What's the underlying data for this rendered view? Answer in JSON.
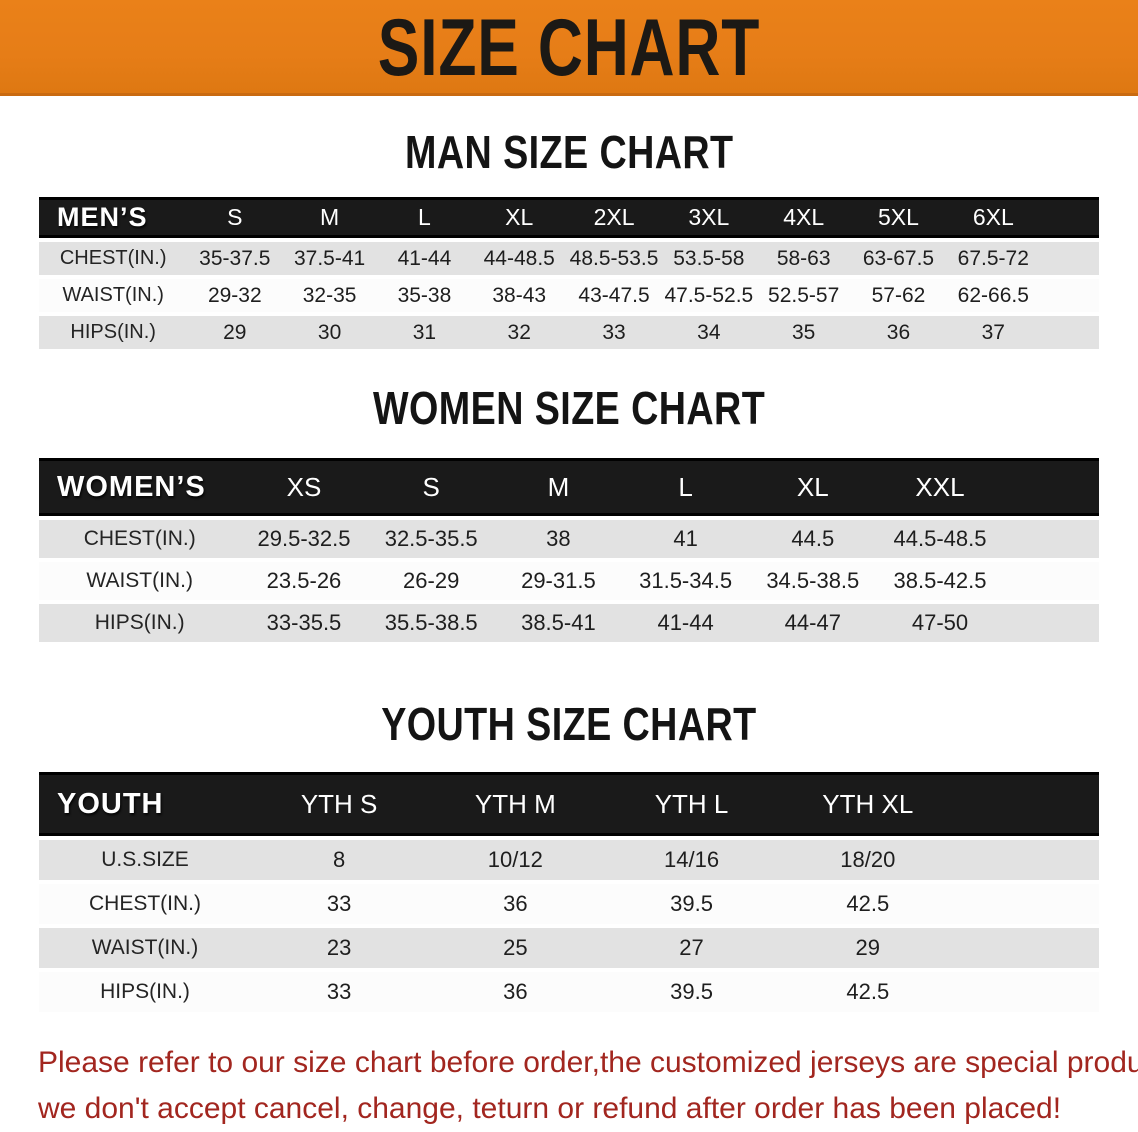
{
  "banner": {
    "title": "SIZE CHART"
  },
  "sections": [
    {
      "title": "MAN SIZE CHART",
      "header_label": "MEN’S",
      "columns": [
        "S",
        "M",
        "L",
        "XL",
        "2XL",
        "3XL",
        "4XL",
        "5XL",
        "6XL"
      ],
      "rows": [
        {
          "label": "CHEST(IN.)",
          "values": [
            "35-37.5",
            "37.5-41",
            "41-44",
            "44-48.5",
            "48.5-53.5",
            "53.5-58",
            "58-63",
            "63-67.5",
            "67.5-72"
          ]
        },
        {
          "label": "WAIST(IN.)",
          "values": [
            "29-32",
            "32-35",
            "35-38",
            "38-43",
            "43-47.5",
            "47.5-52.5",
            "52.5-57",
            "57-62",
            "62-66.5"
          ]
        },
        {
          "label": "HIPS(IN.)",
          "values": [
            "29",
            "30",
            "31",
            "32",
            "33",
            "34",
            "35",
            "36",
            "37"
          ]
        }
      ]
    },
    {
      "title": "WOMEN SIZE CHART",
      "header_label": "WOMEN’S",
      "columns": [
        "XS",
        "S",
        "M",
        "L",
        "XL",
        "XXL"
      ],
      "rows": [
        {
          "label": "CHEST(IN.)",
          "values": [
            "29.5-32.5",
            "32.5-35.5",
            "38",
            "41",
            "44.5",
            "44.5-48.5"
          ]
        },
        {
          "label": "WAIST(IN.)",
          "values": [
            "23.5-26",
            "26-29",
            "29-31.5",
            "31.5-34.5",
            "34.5-38.5",
            "38.5-42.5"
          ]
        },
        {
          "label": "HIPS(IN.)",
          "values": [
            "33-35.5",
            "35.5-38.5",
            "38.5-41",
            "41-44",
            "44-47",
            "47-50"
          ]
        }
      ]
    },
    {
      "title": "YOUTH SIZE CHART",
      "header_label": "YOUTH",
      "columns": [
        "YTH S",
        "YTH M",
        "YTH L",
        "YTH XL"
      ],
      "rows": [
        {
          "label": "U.S.SIZE",
          "values": [
            "8",
            "10/12",
            "14/16",
            "18/20"
          ]
        },
        {
          "label": "CHEST(IN.)",
          "values": [
            "33",
            "36",
            "39.5",
            "42.5"
          ]
        },
        {
          "label": "WAIST(IN.)",
          "values": [
            "23",
            "25",
            "27",
            "29"
          ]
        },
        {
          "label": "HIPS(IN.)",
          "values": [
            "33",
            "36",
            "39.5",
            "42.5"
          ]
        }
      ]
    }
  ],
  "disclaimer": {
    "lines": [
      "Please refer to our size chart before order,the customized jerseys are special products,",
      "we don't accept cancel, change, teturn or refund after order has been placed!"
    ]
  },
  "colors": {
    "banner_orange": "#E67D17",
    "bar_black": "#1A1A1A",
    "row_gray": "#E2E2E2",
    "row_white": "#FCFCFC",
    "disclaimer_red": "#A2261F",
    "heading_black": "#141414"
  }
}
